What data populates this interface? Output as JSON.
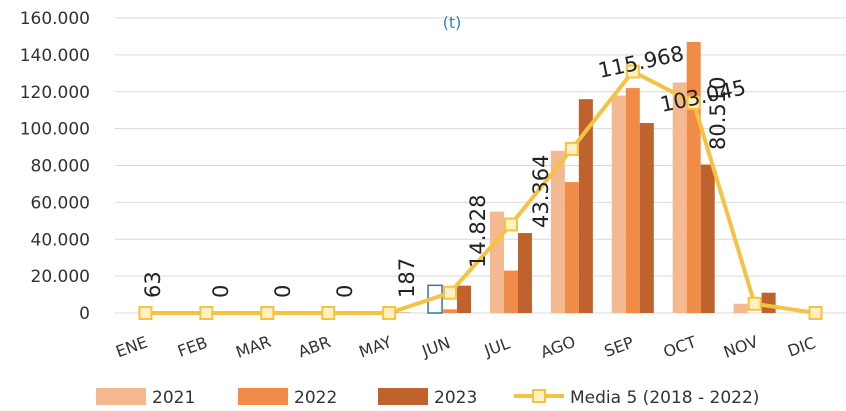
{
  "chart_data": {
    "type": "bar",
    "unit_label": "(t)",
    "categories": [
      "ENE",
      "FEB",
      "MAR",
      "ABR",
      "MAY",
      "JUN",
      "JUL",
      "AGO",
      "SEP",
      "OCT",
      "NOV",
      "DIC"
    ],
    "ylim": [
      0,
      160000
    ],
    "yticks": [
      "0",
      "20.000",
      "40.000",
      "60.000",
      "80.000",
      "100.000",
      "120.000",
      "140.000",
      "160.000"
    ],
    "grid": true,
    "legend_position": "bottom",
    "series": [
      {
        "name": "2021",
        "type": "bar",
        "color": "#f4b990",
        "values": [
          0,
          0,
          0,
          0,
          0,
          0,
          55000,
          88000,
          118000,
          125000,
          5000,
          0
        ]
      },
      {
        "name": "2022",
        "type": "bar",
        "color": "#f08c48",
        "values": [
          0,
          0,
          0,
          0,
          0,
          2000,
          23000,
          71000,
          122000,
          147000,
          0,
          0
        ]
      },
      {
        "name": "2023",
        "type": "bar",
        "color": "#c0622e",
        "values": [
          63,
          0,
          0,
          0,
          187,
          14828,
          43364,
          115968,
          103045,
          80510,
          11000,
          0
        ]
      },
      {
        "name": "Media 5 (2018 - 2022)",
        "type": "line",
        "color": "#f5c242",
        "values": [
          0,
          0,
          0,
          0,
          0,
          11000,
          48000,
          89000,
          131000,
          114000,
          5000,
          0
        ]
      }
    ],
    "data_labels": [
      "63",
      "0",
      "0",
      "0",
      "187",
      "14.828",
      "43.364",
      "115.968",
      "103.045",
      "80.510"
    ]
  }
}
